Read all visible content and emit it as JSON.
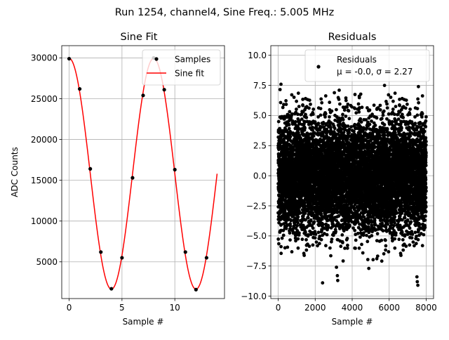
{
  "suptitle": "Run 1254, channel4, Sine Freq.: 5.005 MHz",
  "chart_data": [
    {
      "type": "line",
      "title": "Sine Fit",
      "xlabel": "Sample #",
      "ylabel": "ADC Counts",
      "xlim": [
        -0.7,
        14.7
      ],
      "ylim": [
        500,
        31500
      ],
      "grid": true,
      "legend_position": "top-right",
      "xticks": [
        0,
        5,
        10
      ],
      "xtick_labels": [
        "0",
        "5",
        "10"
      ],
      "yticks": [
        5000,
        10000,
        15000,
        20000,
        25000,
        30000
      ],
      "ytick_labels": [
        "5000",
        "10000",
        "15000",
        "20000",
        "25000",
        "30000"
      ],
      "series": [
        {
          "name": "Samples",
          "kind": "scatter",
          "color": "#000000",
          "x": [
            0,
            1,
            2,
            3,
            4,
            5,
            6,
            7,
            8,
            9,
            10,
            11,
            12,
            13
          ],
          "y": [
            29900,
            26200,
            16400,
            6200,
            1700,
            5500,
            15300,
            25400,
            30000,
            26100,
            16300,
            6200,
            1600,
            5500
          ]
        },
        {
          "name": "Sine fit",
          "kind": "line",
          "color": "#ff0000",
          "model": {
            "offset": 15800,
            "amplitude": 14150,
            "period": 8.0,
            "phase_sample": 0.0,
            "x_start": 0,
            "x_end": 14
          }
        }
      ]
    },
    {
      "type": "scatter",
      "title": "Residuals",
      "xlabel": "Sample #",
      "ylabel": "",
      "xlim": [
        -400,
        8400
      ],
      "ylim": [
        -10.2,
        10.8
      ],
      "grid": true,
      "legend_position": "top-right",
      "xticks": [
        0,
        2000,
        4000,
        6000,
        8000
      ],
      "xtick_labels": [
        "0",
        "2000",
        "4000",
        "6000",
        "8000"
      ],
      "yticks": [
        -10.0,
        -7.5,
        -5.0,
        -2.5,
        0.0,
        2.5,
        5.0,
        7.5,
        10.0
      ],
      "ytick_labels": [
        "−10.0",
        "−7.5",
        "−5.0",
        "−2.5",
        "0.0",
        "2.5",
        "5.0",
        "7.5",
        "10.0"
      ],
      "series": [
        {
          "name": "Residuals",
          "label_line2": "μ = -0.0, σ = 2.27",
          "color": "#000000",
          "n_points": 8000,
          "x_range": [
            0,
            7999
          ],
          "mean": -0.0,
          "sigma": 2.27,
          "outliers": [
            {
              "x": 150,
              "y": 7.6
            },
            {
              "x": 3200,
              "y": -8.3
            },
            {
              "x": 3220,
              "y": -8.7
            },
            {
              "x": 2400,
              "y": -8.9
            },
            {
              "x": 4900,
              "y": -7.7
            },
            {
              "x": 7500,
              "y": -8.4
            },
            {
              "x": 7520,
              "y": -8.8
            },
            {
              "x": 7550,
              "y": -9.1
            },
            {
              "x": 3300,
              "y": 7.1
            },
            {
              "x": 3150,
              "y": -7.6
            },
            {
              "x": 7580,
              "y": 7.4
            },
            {
              "x": 5750,
              "y": 7.5
            }
          ]
        }
      ]
    }
  ]
}
